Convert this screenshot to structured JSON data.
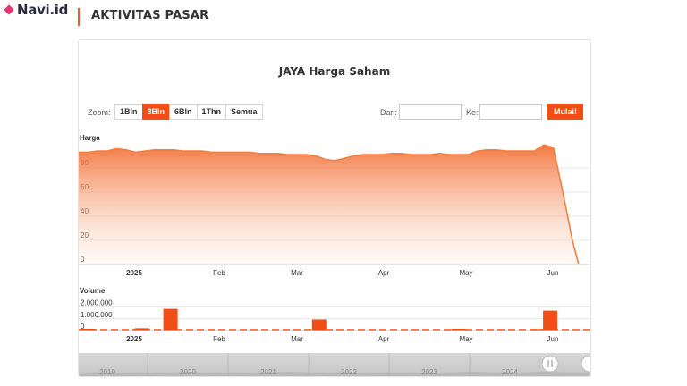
{
  "brand": {
    "name": "Navi.id"
  },
  "header": {
    "title": "AKTIVITAS PASAR"
  },
  "chart": {
    "title": "JAYA Harga Saham",
    "zoom_label": "Zoom:",
    "zoom_buttons": [
      {
        "label": "1Bln",
        "active": false
      },
      {
        "label": "3Bln",
        "active": true
      },
      {
        "label": "6Bln",
        "active": false
      },
      {
        "label": "1Thn",
        "active": false
      },
      {
        "label": "Semua",
        "active": false
      }
    ],
    "from_label": "Dari:",
    "from_value": "",
    "to_label": "Ke:",
    "to_value": "",
    "go_label": "Mulai!",
    "accent": "#f14e16"
  },
  "chart_data": [
    {
      "type": "area",
      "title": "Harga",
      "y_ticks": [
        "0",
        "20",
        "40",
        "60",
        "80"
      ],
      "ylim": [
        0,
        100
      ],
      "x_ticks": [
        "2025",
        "Feb",
        "Mar",
        "Apr",
        "May",
        "Jun"
      ],
      "x": [
        0,
        3,
        6,
        9,
        12,
        15,
        18,
        21,
        24,
        27,
        30,
        33,
        36,
        39,
        42,
        45,
        48,
        51,
        54,
        57,
        60,
        63,
        66,
        69,
        72,
        75,
        78,
        81,
        84,
        87,
        90,
        93,
        96,
        99,
        102,
        105,
        108,
        111,
        114,
        117,
        120,
        123,
        126,
        129,
        132,
        135,
        138,
        141,
        144,
        147,
        150,
        153,
        156,
        158
      ],
      "values": [
        93,
        93,
        94,
        94,
        96,
        95,
        93,
        94,
        95,
        95,
        95,
        94,
        94,
        94,
        93,
        93,
        93,
        93,
        93,
        92,
        92,
        92,
        91,
        91,
        91,
        90,
        87,
        86,
        88,
        90,
        91,
        91,
        91,
        92,
        92,
        91,
        91,
        91,
        92,
        91,
        91,
        91,
        94,
        95,
        95,
        94,
        94,
        94,
        94,
        99,
        97,
        60,
        20,
        0
      ],
      "grid": true,
      "color": "#f28040"
    },
    {
      "type": "bar",
      "title": "Volume",
      "y_ticks": [
        "0",
        "1.000.000",
        "2.000.000"
      ],
      "ylim": [
        0,
        2500000
      ],
      "x_ticks": [
        "2025",
        "Feb",
        "Mar",
        "Apr",
        "May",
        "Jun"
      ],
      "bars": [
        {
          "x": 3,
          "value": 150000
        },
        {
          "x": 20,
          "value": 200000
        },
        {
          "x": 29,
          "value": 1850000
        },
        {
          "x": 76,
          "value": 950000
        },
        {
          "x": 120,
          "value": 150000
        },
        {
          "x": 145,
          "value": 130000
        },
        {
          "x": 149,
          "value": 1700000
        }
      ],
      "color": "#f14e16"
    }
  ],
  "navigator": {
    "years": [
      "2019",
      "2020",
      "2021",
      "2022",
      "2023",
      "2024"
    ]
  }
}
